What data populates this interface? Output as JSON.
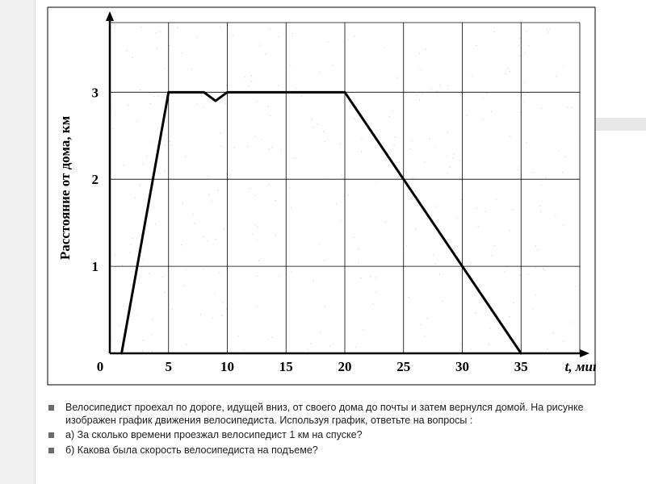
{
  "chart": {
    "type": "line",
    "x_range": [
      0,
      40
    ],
    "y_range": [
      0,
      3.8
    ],
    "x_ticks": [
      0,
      5,
      10,
      15,
      20,
      25,
      30,
      35
    ],
    "y_ticks": [
      0,
      1,
      2,
      3
    ],
    "x_label": "t,   мин",
    "y_label": "Расстояние от дома, км",
    "origin_label": "0",
    "line_points": [
      [
        1,
        0
      ],
      [
        5,
        3
      ],
      [
        8,
        3
      ],
      [
        9,
        2.9
      ],
      [
        10,
        3
      ],
      [
        20,
        3
      ],
      [
        35,
        0
      ]
    ],
    "line_color": "#000000",
    "line_width": 3,
    "grid_color": "#000000",
    "grid_width": 0.8,
    "axis_color": "#000000",
    "axis_width": 2.5,
    "bg_color": "#ffffff",
    "tick_fontsize": 17,
    "label_fontsize": 17,
    "noise_color": "#5a5a5a"
  },
  "bullets": [
    "Велосипедист проехал по дороге, идущей вниз, от своего дома до почты и затем вернулся домой. На рисунке изображен график движения велосипедиста. Используя график, ответьте на вопросы :",
    "а) За сколько времени проезжал велосипедист 1 км на спуске?",
    "б) Какова была скорость велосипедиста  на подъеме?"
  ]
}
